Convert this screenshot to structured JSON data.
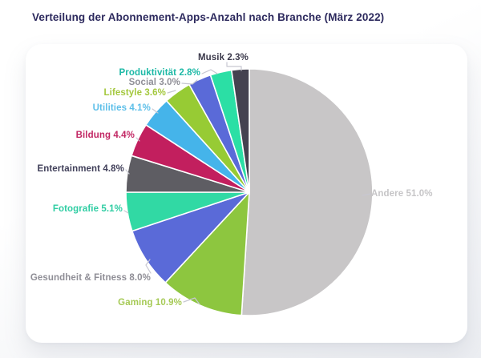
{
  "title": "Verteilung der Abonnement-Apps-Anzahl nach Branche (März 2022)",
  "colors": {
    "title": "#2d2a5e",
    "card_background": "#ffffff",
    "page_background": "#eceef2",
    "slice_border": "#ffffff",
    "leader_line": "#c7c7d1"
  },
  "chart_data": {
    "type": "pie",
    "title": "Verteilung der Abonnement-Apps-Anzahl nach Branche (März 2022)",
    "unit": "%",
    "start_angle_deg": 0,
    "direction": "clockwise",
    "legend_position": "none",
    "labels_position": "outside",
    "slices": [
      {
        "label": "Andere",
        "value": 51.0,
        "display": "Andere 51.0%",
        "color": "#c8c6c7",
        "label_color": "#c6c5c7"
      },
      {
        "label": "Gaming",
        "value": 10.9,
        "display": "Gaming 10.9%",
        "color": "#8dc63f",
        "label_color": "#a6ca56"
      },
      {
        "label": "Gesundheit & Fitness",
        "value": 8.0,
        "display": "Gesundheit & Fitness 8.0%",
        "color": "#5a6ad8",
        "label_color": "#8f8e96"
      },
      {
        "label": "Fotografie",
        "value": 5.1,
        "display": "Fotografie 5.1%",
        "color": "#31d9a4",
        "label_color": "#2fcda3"
      },
      {
        "label": "Entertainment",
        "value": 4.8,
        "display": "Entertainment 4.8%",
        "color": "#5e5d63",
        "label_color": "#41405a"
      },
      {
        "label": "Bildung",
        "value": 4.4,
        "display": "Bildung 4.4%",
        "color": "#c21f5e",
        "label_color": "#c22764"
      },
      {
        "label": "Utilities",
        "value": 4.1,
        "display": "Utilities 4.1%",
        "color": "#45b4ea",
        "label_color": "#5dbfe9"
      },
      {
        "label": "Lifestyle",
        "value": 3.6,
        "display": "Lifestyle 3.6%",
        "color": "#97cb34",
        "label_color": "#a4c83e"
      },
      {
        "label": "Social",
        "value": 3.0,
        "display": "Social 3.0%",
        "color": "#5a6ad8",
        "label_color": "#8f8e96"
      },
      {
        "label": "Produktivität",
        "value": 2.8,
        "display": "Produktivität 2.8%",
        "color": "#2bdfa5",
        "label_color": "#1db9a6"
      },
      {
        "label": "Musik",
        "value": 2.3,
        "display": "Musik 2.3%",
        "color": "#454250",
        "label_color": "#3b394b"
      }
    ]
  }
}
